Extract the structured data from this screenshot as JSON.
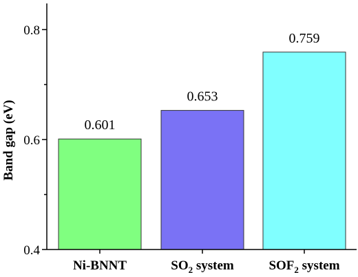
{
  "chart_data": {
    "type": "bar",
    "title": "",
    "xlabel": "",
    "ylabel": "Band gap (eV)",
    "ylim": [
      0.4,
      0.8
    ],
    "yticks": [
      "0.4",
      "0.6",
      "0.8"
    ],
    "grid": false,
    "categories": [
      {
        "name": "Ni-BNNT",
        "parts": [
          {
            "t": "Ni-BNNT"
          }
        ]
      },
      {
        "name": "SO2 system",
        "parts": [
          {
            "t": "SO"
          },
          {
            "t": "2",
            "sub": true
          },
          {
            "t": " system"
          }
        ]
      },
      {
        "name": "SOF2 system",
        "parts": [
          {
            "t": "SOF"
          },
          {
            "t": "2",
            "sub": true
          },
          {
            "t": " system"
          }
        ]
      }
    ],
    "values": [
      0.601,
      0.653,
      0.759
    ],
    "value_labels": [
      "0.601",
      "0.653",
      "0.759"
    ],
    "colors": [
      "#80ff80",
      "#7a72f5",
      "#80ffff"
    ]
  }
}
